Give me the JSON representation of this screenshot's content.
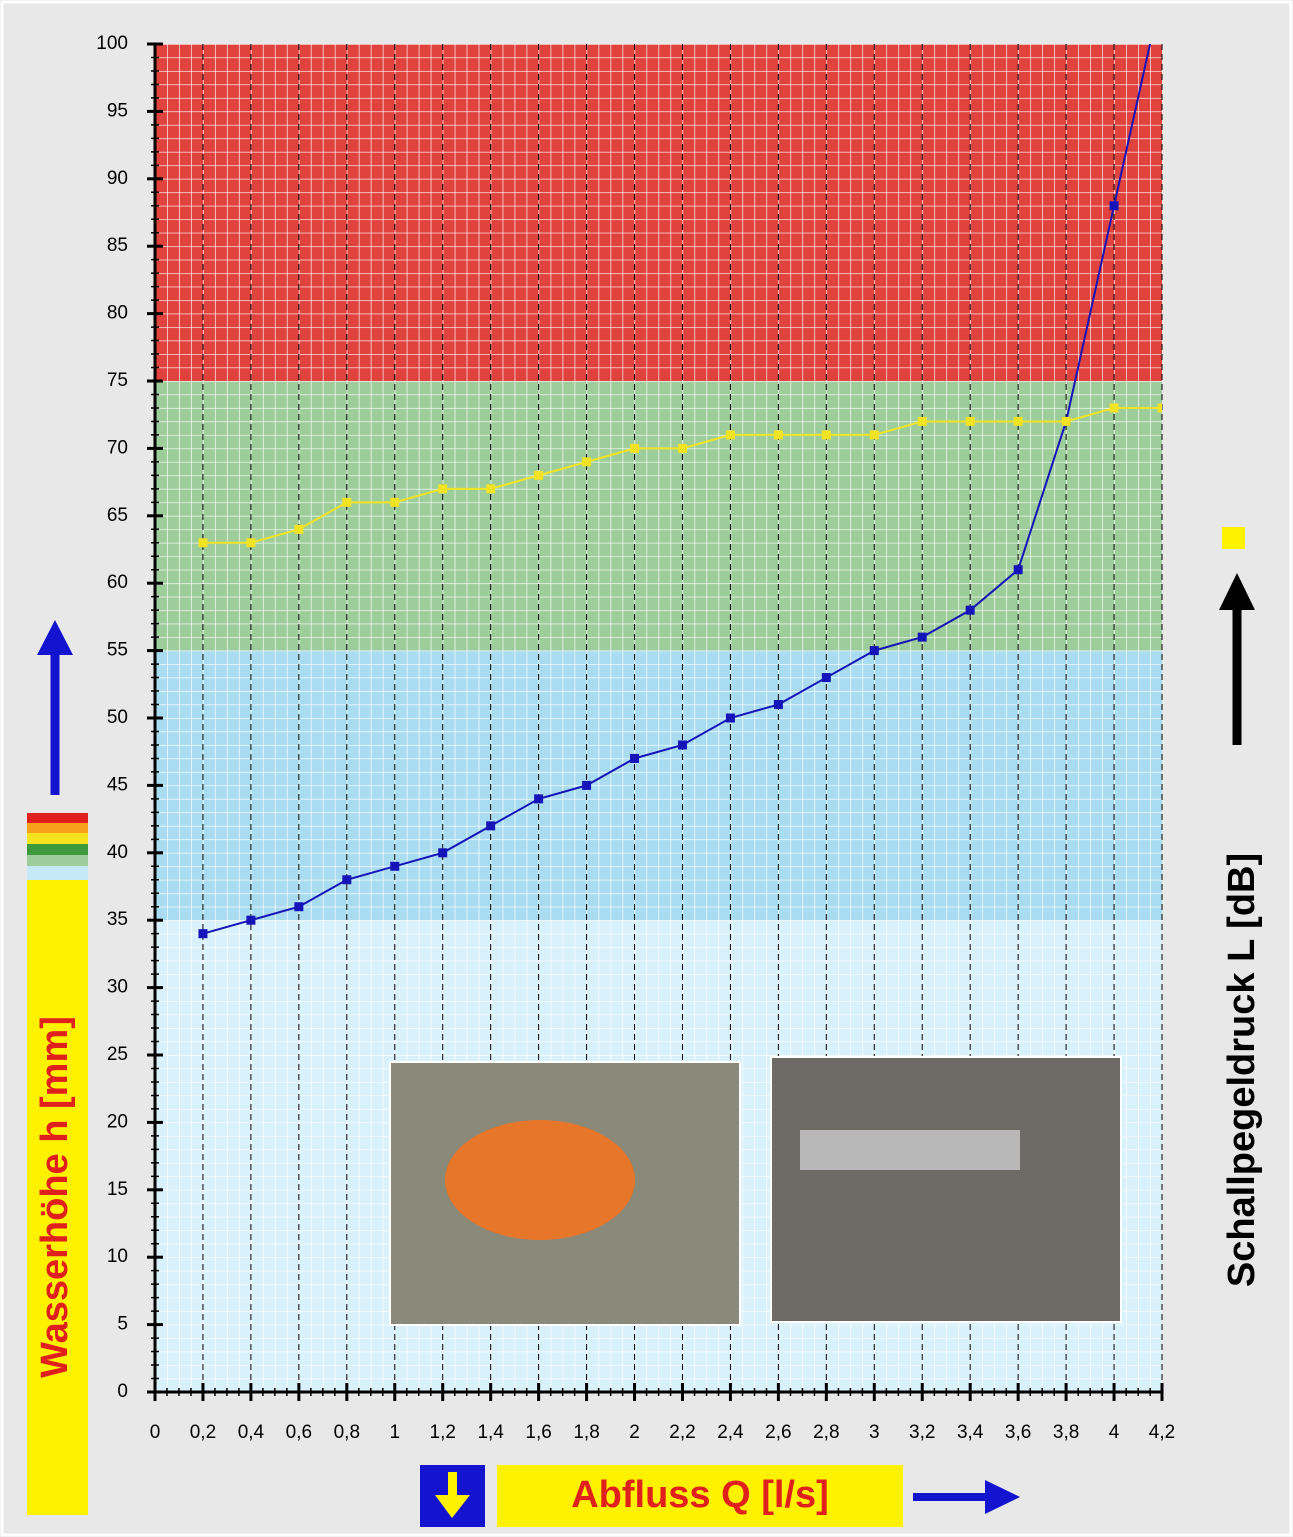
{
  "chart_data": {
    "type": "line",
    "y_label": "Wasserhöhe h [mm]",
    "y2_label": "Schallpegeldruck L [dB]",
    "x_label": "Abfluss Q [l/s]",
    "xlim": [
      0,
      4.2
    ],
    "ylim": [
      0,
      100
    ],
    "xticks": [
      0,
      {
        "value": 0.2,
        "label": "0,2"
      },
      {
        "value": 0.4,
        "label": "0,4"
      },
      {
        "value": 0.6,
        "label": "0,6"
      },
      {
        "value": 0.8,
        "label": "0,8"
      },
      1,
      {
        "value": 1.2,
        "label": "1,2"
      },
      {
        "value": 1.4,
        "label": "1,4"
      },
      {
        "value": 1.6,
        "label": "1,6"
      },
      {
        "value": 1.8,
        "label": "1,8"
      },
      2,
      {
        "value": 2.2,
        "label": "2,2"
      },
      {
        "value": 2.4,
        "label": "2,4"
      },
      {
        "value": 2.6,
        "label": "2,6"
      },
      {
        "value": 2.8,
        "label": "2,8"
      },
      3,
      {
        "value": 3.2,
        "label": "3,2"
      },
      {
        "value": 3.4,
        "label": "3,4"
      },
      {
        "value": 3.6,
        "label": "3,6"
      },
      {
        "value": 3.8,
        "label": "3,8"
      },
      4,
      {
        "value": 4.2,
        "label": "4,2"
      }
    ],
    "yticks": [
      0,
      5,
      10,
      15,
      20,
      25,
      30,
      35,
      40,
      45,
      50,
      55,
      60,
      65,
      70,
      75,
      80,
      85,
      90,
      95,
      100
    ],
    "bands": [
      {
        "from": 0,
        "to": 35,
        "color": "#d9f1fb"
      },
      {
        "from": 35,
        "to": 55,
        "color": "#a9dcf1"
      },
      {
        "from": 55,
        "to": 75,
        "color": "#9dcd9a"
      },
      {
        "from": 75,
        "to": 100,
        "color": "#e0423e"
      }
    ],
    "x": [
      0.2,
      0.4,
      0.6,
      0.8,
      1,
      1.2,
      1.4,
      1.6,
      1.8,
      2,
      2.2,
      2.4,
      2.6,
      2.8,
      3,
      3.2,
      3.4,
      3.6,
      3.8,
      4,
      4.2
    ],
    "series": [
      {
        "color": "#1414b8",
        "values": [
          34,
          35,
          36,
          38,
          39,
          40,
          42,
          44,
          45,
          47,
          48,
          50,
          51,
          53,
          55,
          56,
          58,
          61,
          72,
          88,
          104
        ]
      },
      {
        "color": "#f2e424",
        "values": [
          63,
          63,
          64,
          66,
          66,
          67,
          67,
          68,
          69,
          70,
          70,
          71,
          71,
          71,
          71,
          72,
          72,
          72,
          72,
          73,
          73
        ]
      }
    ]
  }
}
